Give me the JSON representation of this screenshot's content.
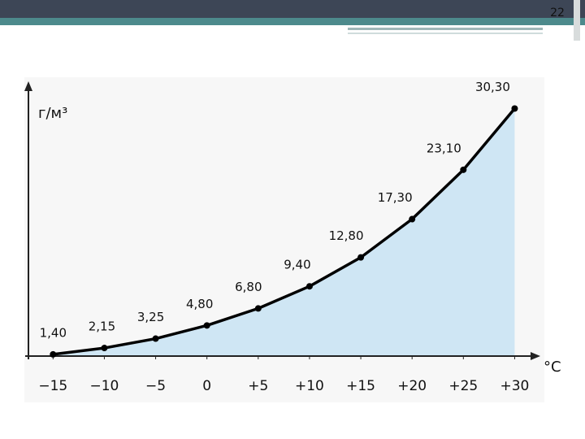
{
  "slide_number": "22",
  "chart_data": {
    "type": "line",
    "y_label": "г/м³",
    "x_label": "°C",
    "x": [
      -15,
      -10,
      -5,
      0,
      5,
      10,
      15,
      20,
      25,
      30
    ],
    "values": [
      1.4,
      2.15,
      3.25,
      4.8,
      6.8,
      9.4,
      12.8,
      17.3,
      23.1,
      30.3
    ],
    "value_labels": [
      "1,40",
      "2,15",
      "3,25",
      "4,80",
      "6,80",
      "9,40",
      "12,80",
      "17,30",
      "23,10",
      "30,30"
    ],
    "xlim": [
      -17.4,
      32.5
    ],
    "ylim": [
      1.2,
      33.5
    ],
    "xticks": [
      {
        "value": -15,
        "label": "−15"
      },
      {
        "value": -10,
        "label": "−10"
      },
      {
        "value": -5,
        "label": "−5"
      },
      0,
      {
        "value": 5,
        "label": "+5"
      },
      {
        "value": 10,
        "label": "+10"
      },
      {
        "value": 15,
        "label": "+15"
      },
      {
        "value": 20,
        "label": "+20"
      },
      {
        "value": 25,
        "label": "+25"
      },
      {
        "value": 30,
        "label": "+30"
      }
    ],
    "color": "#000000",
    "fill": "#cfe6f4",
    "grid": false
  }
}
